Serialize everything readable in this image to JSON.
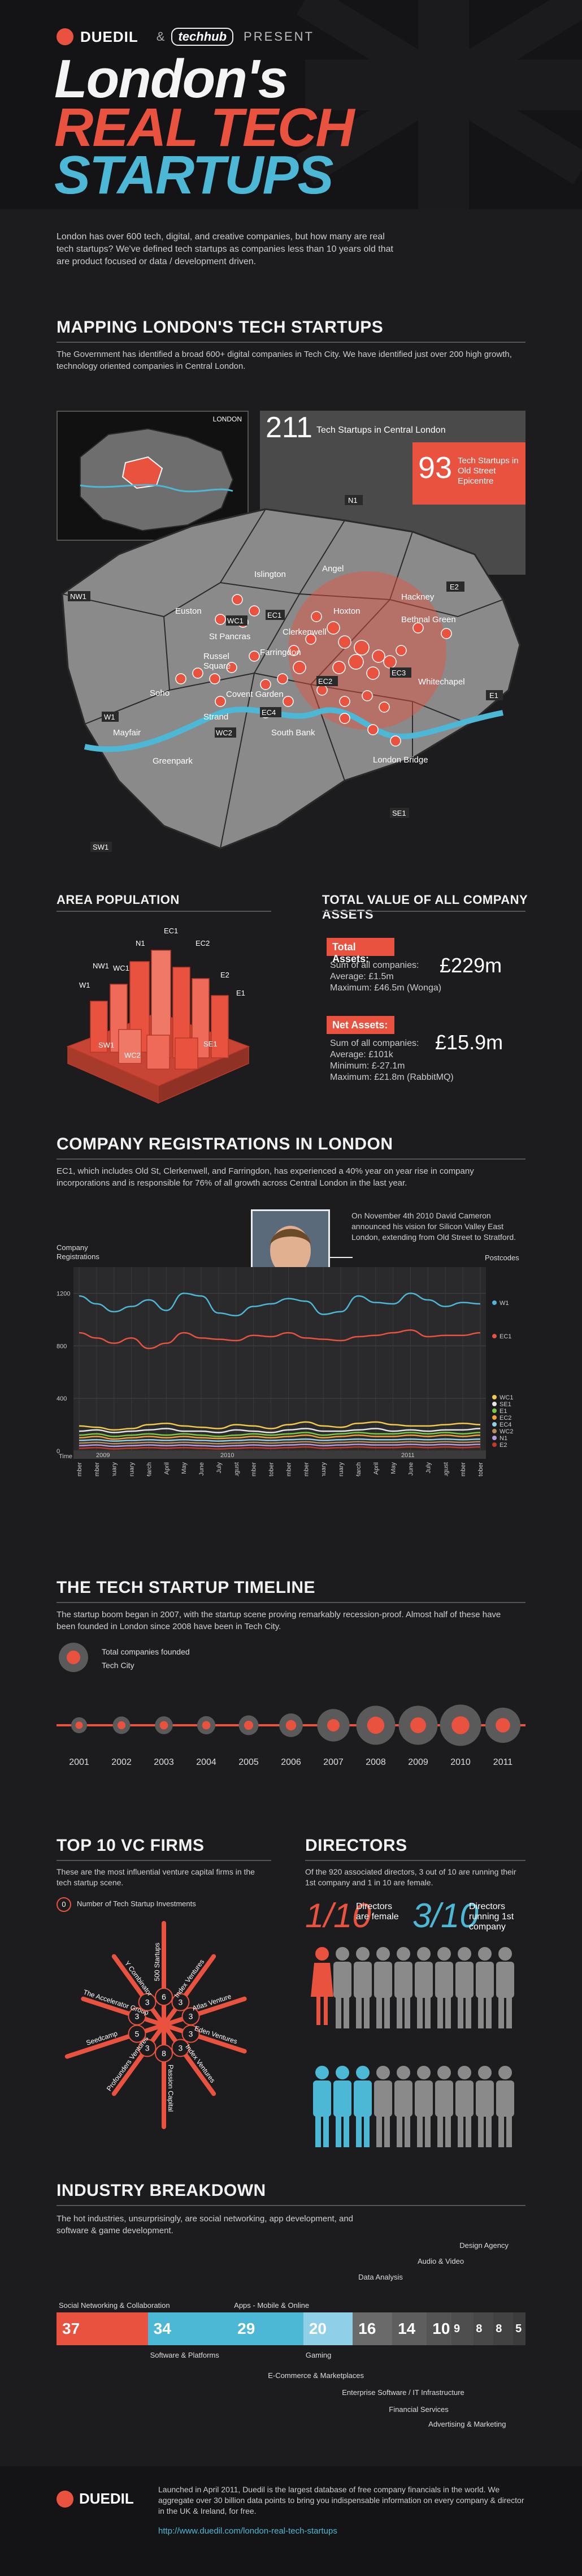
{
  "header": {
    "brand": "DUEDIL",
    "ampersand": "&",
    "partner": "techhub",
    "present": "PRESENT",
    "title_line1": "London's",
    "title_line2": "REAL TECH",
    "title_line3": "STARTUPS",
    "intro": "London has over 600 tech, digital, and creative companies, but how many are real tech startups? We've defined tech startups as companies less than 10 years old that are product focused or data / development driven."
  },
  "mapping": {
    "title": "MAPPING LONDON'S TECH STARTUPS",
    "text": "The Government has identified a broad 600+ digital companies in Tech City. We have identified just over 200 high growth, technology oriented companies in Central London.",
    "inset_label": "LONDON",
    "total_count": "211",
    "total_label": "Tech Startups in Central London",
    "epicentre_count": "93",
    "epicentre_label": "Tech Startups in Old Street Epicentre",
    "areas": [
      "Islington",
      "Angel",
      "Hackney",
      "Euston",
      "Hoxton",
      "St Pancras",
      "Bethnal Green",
      "Clerkenwell",
      "Russel Square",
      "Farringdon",
      "Soho",
      "Covent Garden",
      "Whitechapel",
      "Strand",
      "Mayfair",
      "South Bank",
      "Greenpark",
      "London Bridge"
    ],
    "postcodes": [
      "NW1",
      "N1",
      "E2",
      "EC1",
      "WC1",
      "E1",
      "W1",
      "EC4",
      "WC2",
      "EC2",
      "EC3",
      "SE1",
      "SW1"
    ]
  },
  "population": {
    "title": "AREA POPULATION",
    "labels": [
      "NW1",
      "N1",
      "EC1",
      "EC2",
      "W1",
      "WC1",
      "E2",
      "E1",
      "SW1",
      "WC2",
      "SE1"
    ]
  },
  "assets": {
    "title": "TOTAL VALUE OF ALL COMPANY ASSETS",
    "total_title": "Total Assets:",
    "total_sum_label": "Sum of all companies:",
    "total_sum": "£229m",
    "total_avg": "Average: £1.5m",
    "total_max": "Maximum: £46.5m (Wonga)",
    "net_title": "Net Assets:",
    "net_sum_label": "Sum of all companies:",
    "net_sum": "£15.9m",
    "net_avg": "Average: £101k",
    "net_min": "Minimum: £-27.1m",
    "net_max": "Maximum: £21.8m (RabbitMQ)"
  },
  "registrations": {
    "title": "COMPANY REGISTRATIONS IN LONDON",
    "text": "EC1, which includes Old St, Clerkenwell, and Farringdon, has experienced a 40% year on year rise in company incorporations and is responsible for 76% of all growth across Central London in the last year.",
    "quote": "On November 4th 2010 David Cameron announced his vision for Silicon Valley East London, extending from Old Street to Stratford.",
    "ylabel": "Company Registrations",
    "rlabel": "Postcodes",
    "time_label": "Time",
    "year_2009": "2009",
    "year_2010": "2010",
    "year_2011": "2011"
  },
  "chart_data": {
    "type": "line",
    "ylabel": "Company Registrations",
    "xlabel": "Time",
    "ylim": [
      0,
      1400
    ],
    "yticks": [
      "1200",
      "800",
      "400",
      "0"
    ],
    "categories": [
      "November",
      "December",
      "January",
      "February",
      "March",
      "April",
      "May",
      "June",
      "July",
      "August",
      "September",
      "October",
      "November",
      "December",
      "January",
      "February",
      "March",
      "April",
      "May",
      "June",
      "July",
      "August",
      "September",
      "October"
    ],
    "series": [
      {
        "name": "W1",
        "color": "#4cb8d6",
        "values": [
          1180,
          1120,
          1060,
          1100,
          1150,
          1070,
          1200,
          1180,
          1050,
          1030,
          1100,
          1120,
          1160,
          1140,
          1040,
          1060,
          1180,
          1130,
          1120,
          1200,
          1150,
          1100,
          1130,
          1120
        ]
      },
      {
        "name": "EC1",
        "color": "#e8523f",
        "values": [
          900,
          860,
          820,
          860,
          780,
          820,
          900,
          860,
          850,
          840,
          880,
          870,
          900,
          860,
          850,
          840,
          870,
          880,
          900,
          920,
          870,
          880,
          880,
          900
        ]
      },
      {
        "name": "WC1",
        "color": "#f2c94c",
        "values": [
          190,
          180,
          160,
          170,
          200,
          210,
          190,
          180,
          170,
          200,
          190,
          170,
          200,
          220,
          190,
          180,
          210,
          220,
          200,
          190,
          190,
          200,
          210,
          200
        ]
      },
      {
        "name": "SE1",
        "color": "#e6e6e6",
        "values": [
          150,
          160,
          140,
          150,
          160,
          170,
          150,
          150,
          140,
          160,
          150,
          140,
          160,
          170,
          150,
          150,
          160,
          170,
          150,
          160,
          150,
          160,
          160,
          170
        ]
      },
      {
        "name": "E1",
        "color": "#7ac943",
        "values": [
          120,
          130,
          110,
          120,
          130,
          120,
          130,
          120,
          110,
          120,
          130,
          120,
          130,
          140,
          120,
          130,
          140,
          130,
          130,
          140,
          130,
          140,
          130,
          140
        ]
      },
      {
        "name": "EC2",
        "color": "#f0a03a",
        "values": [
          100,
          110,
          90,
          100,
          110,
          100,
          110,
          100,
          95,
          100,
          110,
          100,
          110,
          120,
          100,
          110,
          120,
          110,
          110,
          120,
          110,
          120,
          110,
          120
        ]
      },
      {
        "name": "EC4",
        "color": "#8fd0e8",
        "values": [
          80,
          85,
          75,
          80,
          85,
          80,
          85,
          80,
          75,
          80,
          85,
          80,
          85,
          90,
          80,
          85,
          90,
          85,
          85,
          90,
          85,
          90,
          85,
          90
        ]
      },
      {
        "name": "WC2",
        "color": "#b98a5a",
        "values": [
          60,
          65,
          55,
          60,
          65,
          60,
          65,
          60,
          55,
          60,
          65,
          60,
          65,
          70,
          60,
          65,
          70,
          65,
          65,
          70,
          65,
          70,
          65,
          70
        ]
      },
      {
        "name": "N1",
        "color": "#b39ddb",
        "values": [
          40,
          45,
          35,
          40,
          45,
          40,
          45,
          40,
          35,
          40,
          45,
          40,
          45,
          50,
          40,
          45,
          50,
          45,
          45,
          50,
          45,
          50,
          45,
          50
        ]
      },
      {
        "name": "E2",
        "color": "#c0392b",
        "values": [
          20,
          25,
          15,
          20,
          25,
          20,
          25,
          20,
          15,
          20,
          25,
          20,
          25,
          30,
          20,
          25,
          30,
          25,
          25,
          30,
          25,
          30,
          25,
          30
        ]
      }
    ]
  },
  "timeline": {
    "title": "THE TECH STARTUP TIMELINE",
    "text": "The startup boom began in 2007, with the startup scene proving remarkably recession-proof. Almost half of these have been founded in London since 2008 have been in Tech City.",
    "legend_total": "Total companies founded",
    "legend_techcity": "Tech City",
    "years": [
      "2001",
      "2002",
      "2003",
      "2004",
      "2005",
      "2006",
      "2007",
      "2008",
      "2009",
      "2010",
      "2011"
    ],
    "total_founded_rel": [
      0.12,
      0.16,
      0.17,
      0.18,
      0.22,
      0.32,
      0.55,
      0.72,
      0.72,
      0.78,
      0.62
    ],
    "techcity_rel": [
      0.05,
      0.07,
      0.08,
      0.08,
      0.1,
      0.14,
      0.2,
      0.34,
      0.3,
      0.36,
      0.26
    ]
  },
  "vc": {
    "title": "TOP 10 VC FIRMS",
    "text": "These are the most influential venture capital firms in the tech startup scene.",
    "legend_num": "0",
    "legend_label": "Number of Tech Startup Investments",
    "firms": [
      {
        "name": "500 Startups",
        "n": "6"
      },
      {
        "name": "Index Ventures",
        "n": "3"
      },
      {
        "name": "Atlas Venture",
        "n": "3"
      },
      {
        "name": "Eden Ventures",
        "n": "3"
      },
      {
        "name": "Index Ventures",
        "n": "3"
      },
      {
        "name": "Passion Capital",
        "n": "8"
      },
      {
        "name": "Profounders Ventures",
        "n": "3"
      },
      {
        "name": "Seedcamp",
        "n": "5"
      },
      {
        "name": "The Accelerator Group",
        "n": "3"
      },
      {
        "name": "Y Combinator",
        "n": "3"
      }
    ]
  },
  "directors": {
    "title": "DIRECTORS",
    "text": "Of the 920 associated directors, 3 out of 10 are running their 1st company and 1 in 10 are female.",
    "female_frac": "1/10",
    "female_label": "Directors are female",
    "first_frac": "3/10",
    "first_label": "Directors running 1st company"
  },
  "industry": {
    "title": "INDUSTRY BREAKDOWN",
    "text": "The hot industries, unsurprisingly, are social networking, app development, and software & game development.",
    "segments": [
      {
        "label": "Social Networking & Collaboration",
        "value": "37"
      },
      {
        "label": "Software & Platforms",
        "value": "34"
      },
      {
        "label": "Apps - Mobile & Online",
        "value": "29"
      },
      {
        "label": "Gaming",
        "value": "20"
      },
      {
        "label": "E-Commerce & Marketplaces",
        "value": "16"
      },
      {
        "label": "Data Analysis",
        "value": "14"
      },
      {
        "label": "Enterprise Software / IT Infrastructure",
        "value": "10"
      },
      {
        "label": "Audio & Video",
        "value": "9"
      },
      {
        "label": "Financial Services",
        "value": "8"
      },
      {
        "label": "Design Agency",
        "value": "8"
      },
      {
        "label": "Advertising & Marketing",
        "value": "5"
      }
    ]
  },
  "footer": {
    "brand": "DUEDIL",
    "text": "Launched in April 2011, Duedil is the largest database of free company financials in the world. We aggregate over 30 billion data points to bring you indispensable information on every company & director in the UK & Ireland, for free.",
    "link": "http://www.duedil.com/london-real-tech-startups"
  },
  "colors": {
    "accent": "#e8523f",
    "blue": "#4cb8d6",
    "bg": "#1c1c1e"
  }
}
